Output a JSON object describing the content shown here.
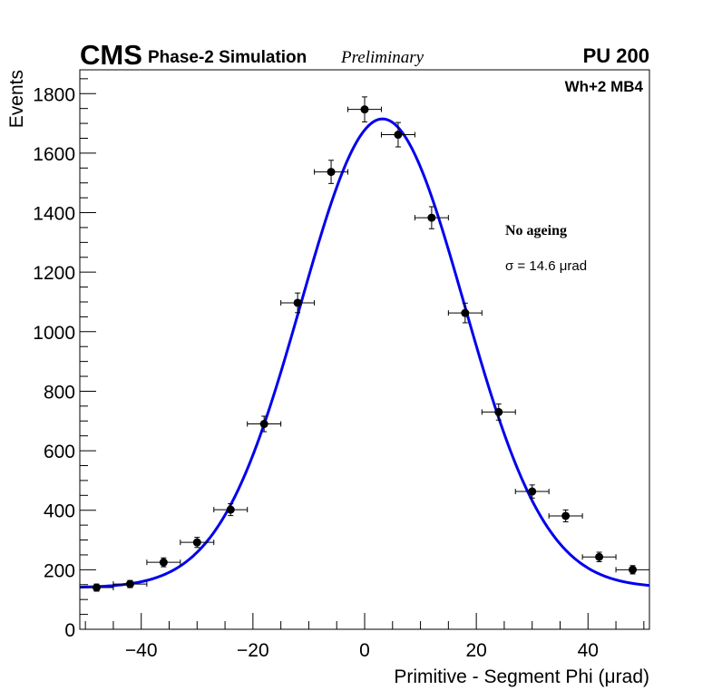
{
  "header": {
    "experiment": "CMS",
    "subtitle": "Phase-2 Simulation",
    "status": "Preliminary",
    "pileup": "PU 200"
  },
  "chart_data": {
    "type": "scatter",
    "title": "",
    "xlabel": "Primitive - Segment Phi (μrad)",
    "ylabel": "Events",
    "xlim": [
      -51,
      51
    ],
    "ylim": [
      0,
      1880
    ],
    "x_ticks": [
      -40,
      -20,
      0,
      20,
      40
    ],
    "x_tick_labels": [
      "−40",
      "−20",
      "0",
      "20",
      "40"
    ],
    "y_ticks": [
      0,
      200,
      400,
      600,
      800,
      1000,
      1200,
      1400,
      1600,
      1800
    ],
    "y_tick_labels": [
      "0",
      "200",
      "400",
      "600",
      "800",
      "1000",
      "1200",
      "1400",
      "1600",
      "1800"
    ],
    "grid": false,
    "series": [
      {
        "name": "Simulation",
        "color": "#000000",
        "x_half_width": 3,
        "points": [
          {
            "x": -48,
            "y": 140,
            "err": 12
          },
          {
            "x": -42,
            "y": 152,
            "err": 12
          },
          {
            "x": -36,
            "y": 225,
            "err": 15
          },
          {
            "x": -30,
            "y": 292,
            "err": 17
          },
          {
            "x": -24,
            "y": 402,
            "err": 20
          },
          {
            "x": -18,
            "y": 690,
            "err": 26
          },
          {
            "x": -12,
            "y": 1097,
            "err": 33
          },
          {
            "x": -6,
            "y": 1537,
            "err": 39
          },
          {
            "x": 0,
            "y": 1747,
            "err": 42
          },
          {
            "x": 6,
            "y": 1662,
            "err": 41
          },
          {
            "x": 12,
            "y": 1383,
            "err": 37
          },
          {
            "x": 18,
            "y": 1063,
            "err": 33
          },
          {
            "x": 24,
            "y": 730,
            "err": 27
          },
          {
            "x": 30,
            "y": 463,
            "err": 22
          },
          {
            "x": 36,
            "y": 381,
            "err": 20
          },
          {
            "x": 42,
            "y": 243,
            "err": 16
          },
          {
            "x": 48,
            "y": 200,
            "err": 14
          }
        ]
      },
      {
        "name": "Gaussian fit",
        "type": "line",
        "color": "#0000ee",
        "model": "gaussian_plus_constant",
        "amplitude": 1575,
        "mean": 3.2,
        "sigma": 14.6,
        "constant": 140
      }
    ],
    "annotations": {
      "category": "Wh+2 MB4",
      "condition": "No ageing",
      "sigma_text": "σ = 14.6  μrad"
    }
  }
}
